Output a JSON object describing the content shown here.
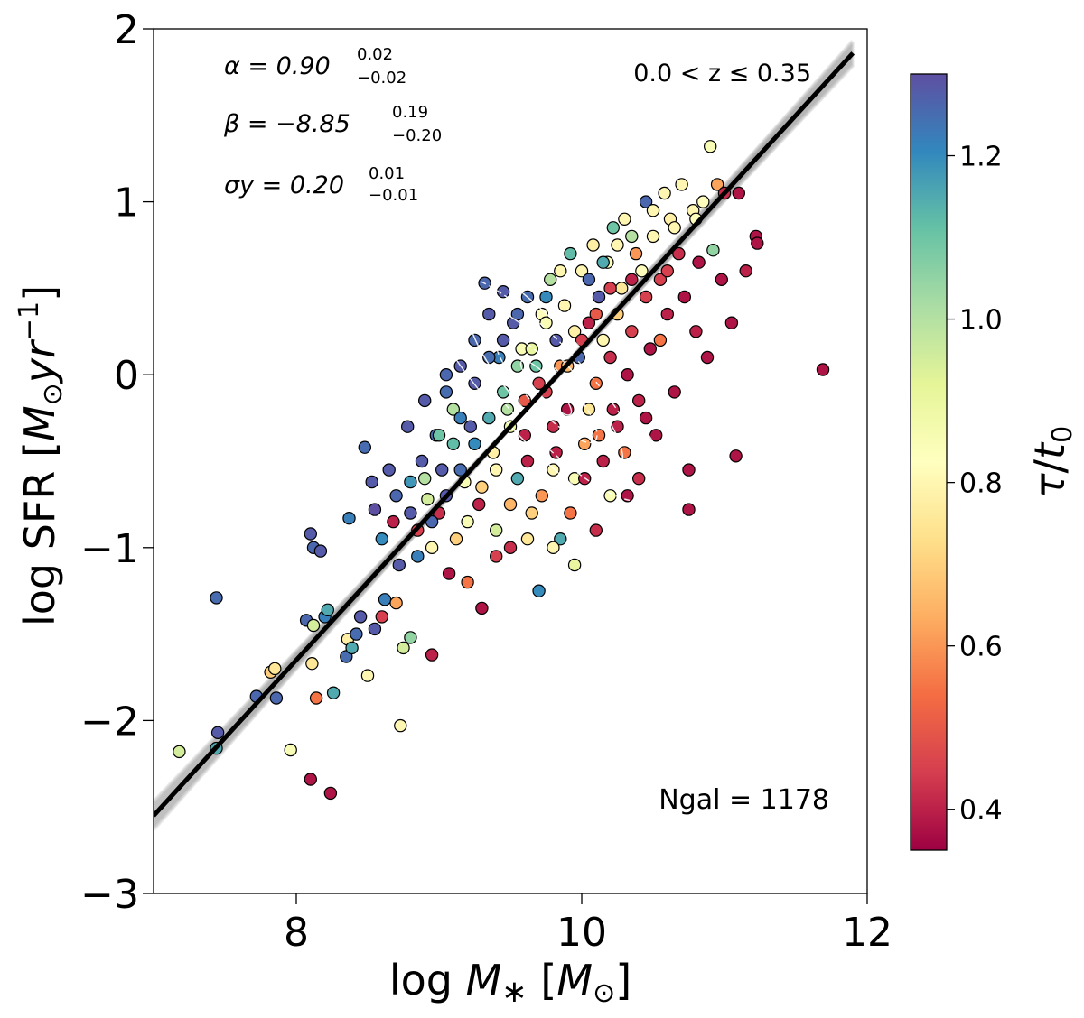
{
  "chart_data": {
    "type": "scatter",
    "xlabel": "log M* [M⊙]",
    "ylabel": "log SFR [M⊙ yr⁻¹]",
    "xlim": [
      7.0,
      12.0
    ],
    "ylim": [
      -3.0,
      2.0
    ],
    "x_ticks": [
      8,
      10,
      12
    ],
    "y_ticks": [
      -3,
      -2,
      -1,
      0,
      1,
      2
    ],
    "x_tick_labels": [
      "8",
      "10",
      "12"
    ],
    "y_tick_labels": [
      "−3",
      "−2",
      "−1",
      "0",
      "1",
      "2"
    ],
    "colorbar": {
      "label": "τ/t0",
      "range": [
        0.35,
        1.3
      ],
      "ticks": [
        0.4,
        0.6,
        0.8,
        1.0,
        1.2
      ],
      "tick_labels": [
        "0.4",
        "0.6",
        "0.8",
        "1.0",
        "1.2"
      ],
      "colormap": "Spectral",
      "colors": [
        "#9e0142",
        "#d53e4f",
        "#f46d43",
        "#fdae61",
        "#fee08b",
        "#ffffbf",
        "#e6f598",
        "#abdda4",
        "#66c2a5",
        "#3288bd",
        "#5e4fa2"
      ]
    },
    "fit": {
      "alpha": 0.9,
      "beta": -8.85,
      "sigma_y": 0.2,
      "x_range": [
        7.0,
        11.9
      ],
      "label_alpha": "α = 0.90",
      "alpha_sup": "0.02",
      "alpha_sub": "−0.02",
      "label_beta": "β = −8.85",
      "beta_sup": "0.19",
      "beta_sub": "−0.20",
      "label_sigma": "σy = 0.20",
      "sigma_sup": "0.01",
      "sigma_sub": "−0.01",
      "line_color": "#000000",
      "band_color": "#888888"
    },
    "redshift_label": "0.0 < z ≤ 0.35",
    "ngal_label": "Ngal = 1178",
    "n_points": 1178,
    "contour_color": "#ffffff",
    "points": [
      [
        7.18,
        -2.18,
        0.95
      ],
      [
        7.45,
        -2.07,
        1.28
      ],
      [
        7.44,
        -2.16,
        1.15
      ],
      [
        7.44,
        -1.29,
        1.25
      ],
      [
        7.72,
        -1.86,
        1.26
      ],
      [
        7.82,
        -1.72,
        0.7
      ],
      [
        7.86,
        -1.87,
        1.26
      ],
      [
        7.96,
        -2.17,
        0.85
      ],
      [
        7.85,
        -1.7,
        0.75
      ],
      [
        8.1,
        -2.34,
        0.38
      ],
      [
        8.24,
        -2.42,
        0.38
      ],
      [
        8.73,
        -2.03,
        0.8
      ],
      [
        8.07,
        -1.42,
        1.26
      ],
      [
        8.12,
        -1.45,
        0.95
      ],
      [
        8.2,
        -1.4,
        1.22
      ],
      [
        8.11,
        -1.67,
        0.75
      ],
      [
        8.14,
        -1.87,
        0.55
      ],
      [
        8.22,
        -1.36,
        1.15
      ],
      [
        8.26,
        -1.84,
        1.15
      ],
      [
        8.35,
        -1.63,
        1.25
      ],
      [
        8.36,
        -1.53,
        0.78
      ],
      [
        8.42,
        -1.5,
        1.25
      ],
      [
        8.5,
        -1.74,
        0.8
      ],
      [
        8.39,
        -1.58,
        1.15
      ],
      [
        8.45,
        -1.4,
        1.28
      ],
      [
        8.55,
        -1.47,
        1.28
      ],
      [
        8.6,
        -1.4,
        0.45
      ],
      [
        8.62,
        -1.3,
        1.22
      ],
      [
        8.7,
        -1.32,
        0.62
      ],
      [
        8.75,
        -1.58,
        0.95
      ],
      [
        8.8,
        -1.52,
        1.05
      ],
      [
        8.95,
        -1.62,
        0.4
      ],
      [
        8.1,
        -0.92,
        1.28
      ],
      [
        8.12,
        -1.0,
        1.26
      ],
      [
        8.17,
        -1.02,
        1.28
      ],
      [
        8.37,
        -0.83,
        1.22
      ],
      [
        8.48,
        -0.42,
        1.25
      ],
      [
        8.53,
        -0.62,
        1.28
      ],
      [
        8.55,
        -0.78,
        1.3
      ],
      [
        8.6,
        -0.95,
        1.2
      ],
      [
        8.65,
        -0.55,
        1.28
      ],
      [
        8.7,
        -0.7,
        1.26
      ],
      [
        8.68,
        -0.85,
        0.4
      ],
      [
        8.72,
        -1.1,
        1.28
      ],
      [
        8.78,
        -0.3,
        1.28
      ],
      [
        8.8,
        -0.62,
        1.18
      ],
      [
        8.85,
        -0.9,
        0.45
      ],
      [
        8.88,
        -0.5,
        1.28
      ],
      [
        8.9,
        -0.15,
        1.28
      ],
      [
        8.92,
        -0.72,
        0.95
      ],
      [
        8.95,
        -1.0,
        0.8
      ],
      [
        8.98,
        -0.35,
        1.25
      ],
      [
        9.0,
        -0.8,
        0.42
      ],
      [
        9.02,
        -0.55,
        1.28
      ],
      [
        9.05,
        -0.1,
        1.25
      ],
      [
        9.07,
        -1.15,
        0.38
      ],
      [
        9.1,
        -0.4,
        1.12
      ],
      [
        9.12,
        -0.95,
        0.7
      ],
      [
        9.15,
        0.05,
        1.28
      ],
      [
        9.18,
        -0.62,
        0.85
      ],
      [
        9.2,
        -1.2,
        0.55
      ],
      [
        9.22,
        -0.3,
        1.28
      ],
      [
        9.25,
        0.2,
        1.26
      ],
      [
        9.28,
        -0.75,
        0.4
      ],
      [
        9.3,
        -1.35,
        0.38
      ],
      [
        9.32,
        0.53,
        1.26
      ],
      [
        9.35,
        0.35,
        1.28
      ],
      [
        9.38,
        -0.45,
        0.78
      ],
      [
        9.4,
        -0.9,
        0.95
      ],
      [
        9.42,
        0.1,
        1.22
      ],
      [
        9.45,
        0.48,
        1.28
      ],
      [
        9.48,
        -0.2,
        1.0
      ],
      [
        9.5,
        -1.0,
        0.42
      ],
      [
        9.52,
        0.3,
        1.28
      ],
      [
        9.55,
        -0.6,
        1.15
      ],
      [
        9.58,
        0.15,
        0.85
      ],
      [
        9.6,
        -0.35,
        0.4
      ],
      [
        9.62,
        0.45,
        1.25
      ],
      [
        9.65,
        -0.8,
        0.7
      ],
      [
        9.68,
        0.05,
        1.1
      ],
      [
        9.7,
        -1.25,
        1.2
      ],
      [
        9.72,
        0.35,
        0.82
      ],
      [
        9.75,
        -0.1,
        0.45
      ],
      [
        9.78,
        0.55,
        1.0
      ],
      [
        9.8,
        -0.55,
        0.8
      ],
      [
        9.82,
        0.2,
        1.28
      ],
      [
        9.85,
        -0.95,
        1.15
      ],
      [
        9.88,
        0.4,
        0.8
      ],
      [
        9.9,
        -0.2,
        0.38
      ],
      [
        9.92,
        0.7,
        1.12
      ],
      [
        9.95,
        -0.6,
        0.85
      ],
      [
        9.98,
        0.1,
        1.26
      ],
      [
        10.0,
        0.6,
        0.8
      ],
      [
        10.02,
        -0.4,
        0.62
      ],
      [
        10.05,
        0.3,
        0.4
      ],
      [
        10.08,
        0.75,
        0.78
      ],
      [
        10.1,
        -0.05,
        0.55
      ],
      [
        10.12,
        0.45,
        1.28
      ],
      [
        10.15,
        -0.5,
        0.4
      ],
      [
        10.18,
        0.65,
        0.82
      ],
      [
        10.2,
        0.1,
        0.42
      ],
      [
        10.22,
        0.85,
        1.1
      ],
      [
        10.25,
        -0.3,
        0.4
      ],
      [
        10.28,
        0.5,
        0.75
      ],
      [
        10.3,
        0.9,
        0.8
      ],
      [
        10.32,
        -0.7,
        0.38
      ],
      [
        10.35,
        0.25,
        0.45
      ],
      [
        10.38,
        0.7,
        0.6
      ],
      [
        10.4,
        -0.15,
        0.4
      ],
      [
        10.42,
        0.6,
        0.82
      ],
      [
        10.45,
        1.0,
        1.26
      ],
      [
        10.48,
        0.15,
        0.38
      ],
      [
        10.5,
        0.8,
        0.8
      ],
      [
        10.52,
        -0.35,
        0.38
      ],
      [
        10.55,
        0.55,
        0.45
      ],
      [
        10.58,
        1.05,
        0.8
      ],
      [
        10.6,
        0.35,
        0.4
      ],
      [
        10.62,
        0.9,
        0.78
      ],
      [
        10.65,
        -0.1,
        0.38
      ],
      [
        10.68,
        0.7,
        0.42
      ],
      [
        10.7,
        1.1,
        0.8
      ],
      [
        10.72,
        0.45,
        0.38
      ],
      [
        10.75,
        -0.55,
        0.38
      ],
      [
        10.78,
        0.95,
        0.8
      ],
      [
        10.8,
        0.25,
        0.4
      ],
      [
        10.82,
        0.65,
        0.38
      ],
      [
        10.85,
        1.0,
        0.82
      ],
      [
        10.88,
        0.1,
        0.38
      ],
      [
        10.9,
        1.32,
        0.85
      ],
      [
        10.92,
        0.72,
        1.05
      ],
      [
        10.95,
        1.1,
        0.62
      ],
      [
        10.98,
        0.55,
        0.38
      ],
      [
        11.0,
        1.05,
        0.42
      ],
      [
        11.05,
        0.3,
        0.38
      ],
      [
        11.08,
        -0.47,
        0.38
      ],
      [
        11.1,
        1.05,
        0.38
      ],
      [
        11.15,
        0.6,
        0.4
      ],
      [
        11.22,
        0.8,
        0.38
      ],
      [
        11.23,
        0.76,
        0.38
      ],
      [
        11.69,
        0.03,
        0.38
      ],
      [
        10.75,
        -0.78,
        0.38
      ],
      [
        10.4,
        -0.6,
        0.42
      ],
      [
        10.45,
        -0.25,
        0.38
      ],
      [
        10.55,
        0.2,
        0.55
      ],
      [
        10.3,
        -0.45,
        0.55
      ],
      [
        10.25,
        0.35,
        0.7
      ],
      [
        10.15,
        0.2,
        0.8
      ],
      [
        10.05,
        -0.2,
        0.75
      ],
      [
        9.95,
        0.25,
        0.78
      ],
      [
        9.85,
        0.05,
        0.6
      ],
      [
        9.75,
        0.3,
        0.85
      ],
      [
        9.65,
        0.15,
        0.9
      ],
      [
        9.55,
        0.05,
        1.05
      ],
      [
        9.45,
        -0.1,
        1.1
      ],
      [
        9.35,
        -0.25,
        1.15
      ],
      [
        9.25,
        -0.4,
        1.2
      ],
      [
        9.15,
        -0.55,
        1.25
      ],
      [
        9.05,
        -0.7,
        1.28
      ],
      [
        8.95,
        -0.85,
        1.26
      ],
      [
        8.85,
        -1.05,
        1.22
      ],
      [
        9.6,
        -0.15,
        0.5
      ],
      [
        9.7,
        -0.05,
        0.45
      ],
      [
        9.8,
        -0.3,
        0.42
      ],
      [
        9.9,
        0.05,
        0.65
      ],
      [
        10.0,
        0.2,
        0.45
      ],
      [
        10.1,
        0.35,
        0.5
      ],
      [
        10.2,
        0.5,
        0.45
      ],
      [
        10.35,
        0.55,
        0.4
      ],
      [
        10.45,
        0.45,
        0.45
      ],
      [
        10.6,
        0.6,
        0.45
      ],
      [
        9.5,
        -0.3,
        0.9
      ],
      [
        9.4,
        -0.55,
        0.8
      ],
      [
        9.3,
        -0.65,
        0.7
      ],
      [
        9.2,
        -0.85,
        0.85
      ],
      [
        9.1,
        -0.2,
        1.0
      ],
      [
        9.0,
        -0.35,
        1.1
      ],
      [
        8.9,
        -0.6,
        1.0
      ],
      [
        8.8,
        -0.8,
        1.28
      ],
      [
        9.55,
        0.35,
        1.26
      ],
      [
        9.75,
        0.45,
        1.2
      ],
      [
        9.85,
        0.6,
        0.8
      ],
      [
        10.05,
        0.55,
        1.26
      ],
      [
        10.15,
        0.65,
        1.15
      ],
      [
        10.25,
        0.75,
        0.8
      ],
      [
        10.35,
        0.8,
        1.0
      ],
      [
        10.5,
        0.95,
        0.8
      ],
      [
        10.65,
        0.85,
        0.8
      ],
      [
        10.8,
        0.9,
        0.82
      ],
      [
        9.62,
        -0.5,
        0.4
      ],
      [
        9.72,
        -0.7,
        0.6
      ],
      [
        9.82,
        -0.45,
        0.4
      ],
      [
        9.92,
        -0.8,
        0.55
      ],
      [
        10.02,
        -0.6,
        0.4
      ],
      [
        10.12,
        -0.35,
        0.55
      ],
      [
        10.22,
        -0.2,
        0.4
      ],
      [
        10.32,
        0.0,
        0.38
      ],
      [
        9.25,
        -0.05,
        1.28
      ],
      [
        9.35,
        0.1,
        1.25
      ],
      [
        9.45,
        0.2,
        1.28
      ],
      [
        9.15,
        -0.25,
        1.22
      ],
      [
        9.05,
        0.0,
        1.26
      ],
      [
        9.5,
        -0.75,
        0.65
      ],
      [
        9.62,
        -0.95,
        0.75
      ],
      [
        9.4,
        -1.05,
        0.45
      ],
      [
        9.8,
        -1.0,
        0.8
      ],
      [
        9.95,
        -1.1,
        0.9
      ],
      [
        10.1,
        -0.9,
        0.42
      ],
      [
        10.2,
        -0.7,
        0.85
      ]
    ]
  }
}
